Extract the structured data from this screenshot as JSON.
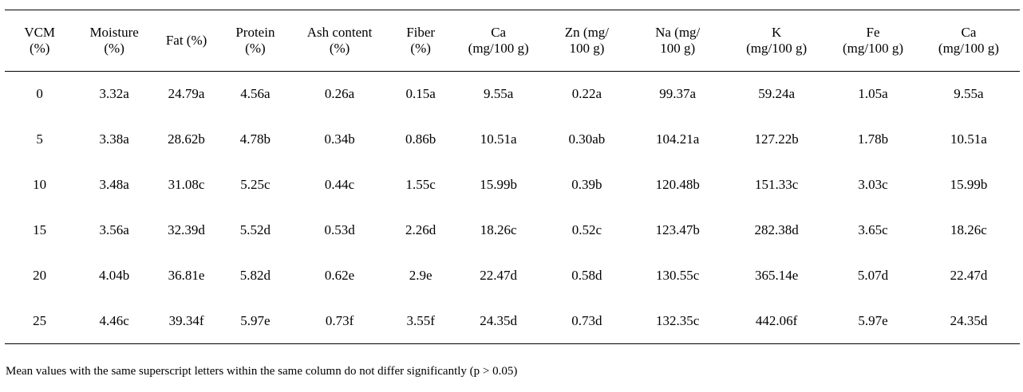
{
  "table": {
    "headers": [
      [
        "VCM",
        "(%)"
      ],
      [
        "Moisture",
        "(%)"
      ],
      [
        "Fat (%)"
      ],
      [
        "Protein",
        "(%)"
      ],
      [
        "Ash content",
        "(%)"
      ],
      [
        "Fiber",
        "(%)"
      ],
      [
        "Ca",
        "(mg/100 g)"
      ],
      [
        "Zn (mg/",
        "100 g)"
      ],
      [
        "Na (mg/",
        "100 g)"
      ],
      [
        "K",
        "(mg/100 g)"
      ],
      [
        "Fe",
        "(mg/100 g)"
      ],
      [
        "Ca",
        "(mg/100 g)"
      ]
    ],
    "rows": [
      [
        "0",
        "3.32a",
        "24.79a",
        "4.56a",
        "0.26a",
        "0.15a",
        "9.55a",
        "0.22a",
        "99.37a",
        "59.24a",
        "1.05a",
        "9.55a"
      ],
      [
        "5",
        "3.38a",
        "28.62b",
        "4.78b",
        "0.34b",
        "0.86b",
        "10.51a",
        "0.30ab",
        "104.21a",
        "127.22b",
        "1.78b",
        "10.51a"
      ],
      [
        "10",
        "3.48a",
        "31.08c",
        "5.25c",
        "0.44c",
        "1.55c",
        "15.99b",
        "0.39b",
        "120.48b",
        "151.33c",
        "3.03c",
        "15.99b"
      ],
      [
        "15",
        "3.56a",
        "32.39d",
        "5.52d",
        "0.53d",
        "2.26d",
        "18.26c",
        "0.52c",
        "123.47b",
        "282.38d",
        "3.65c",
        "18.26c"
      ],
      [
        "20",
        "4.04b",
        "36.81e",
        "5.82d",
        "0.62e",
        "2.9e",
        "22.47d",
        "0.58d",
        "130.55c",
        "365.14e",
        "5.07d",
        "22.47d"
      ],
      [
        "25",
        "4.46c",
        "39.34f",
        "5.97e",
        "0.73f",
        "3.55f",
        "24.35d",
        "0.73d",
        "132.35c",
        "442.06f",
        "5.97e",
        "24.35d"
      ]
    ]
  },
  "footnote": "Mean values with the same superscript letters within the same column do not differ significantly (p > 0.05)"
}
